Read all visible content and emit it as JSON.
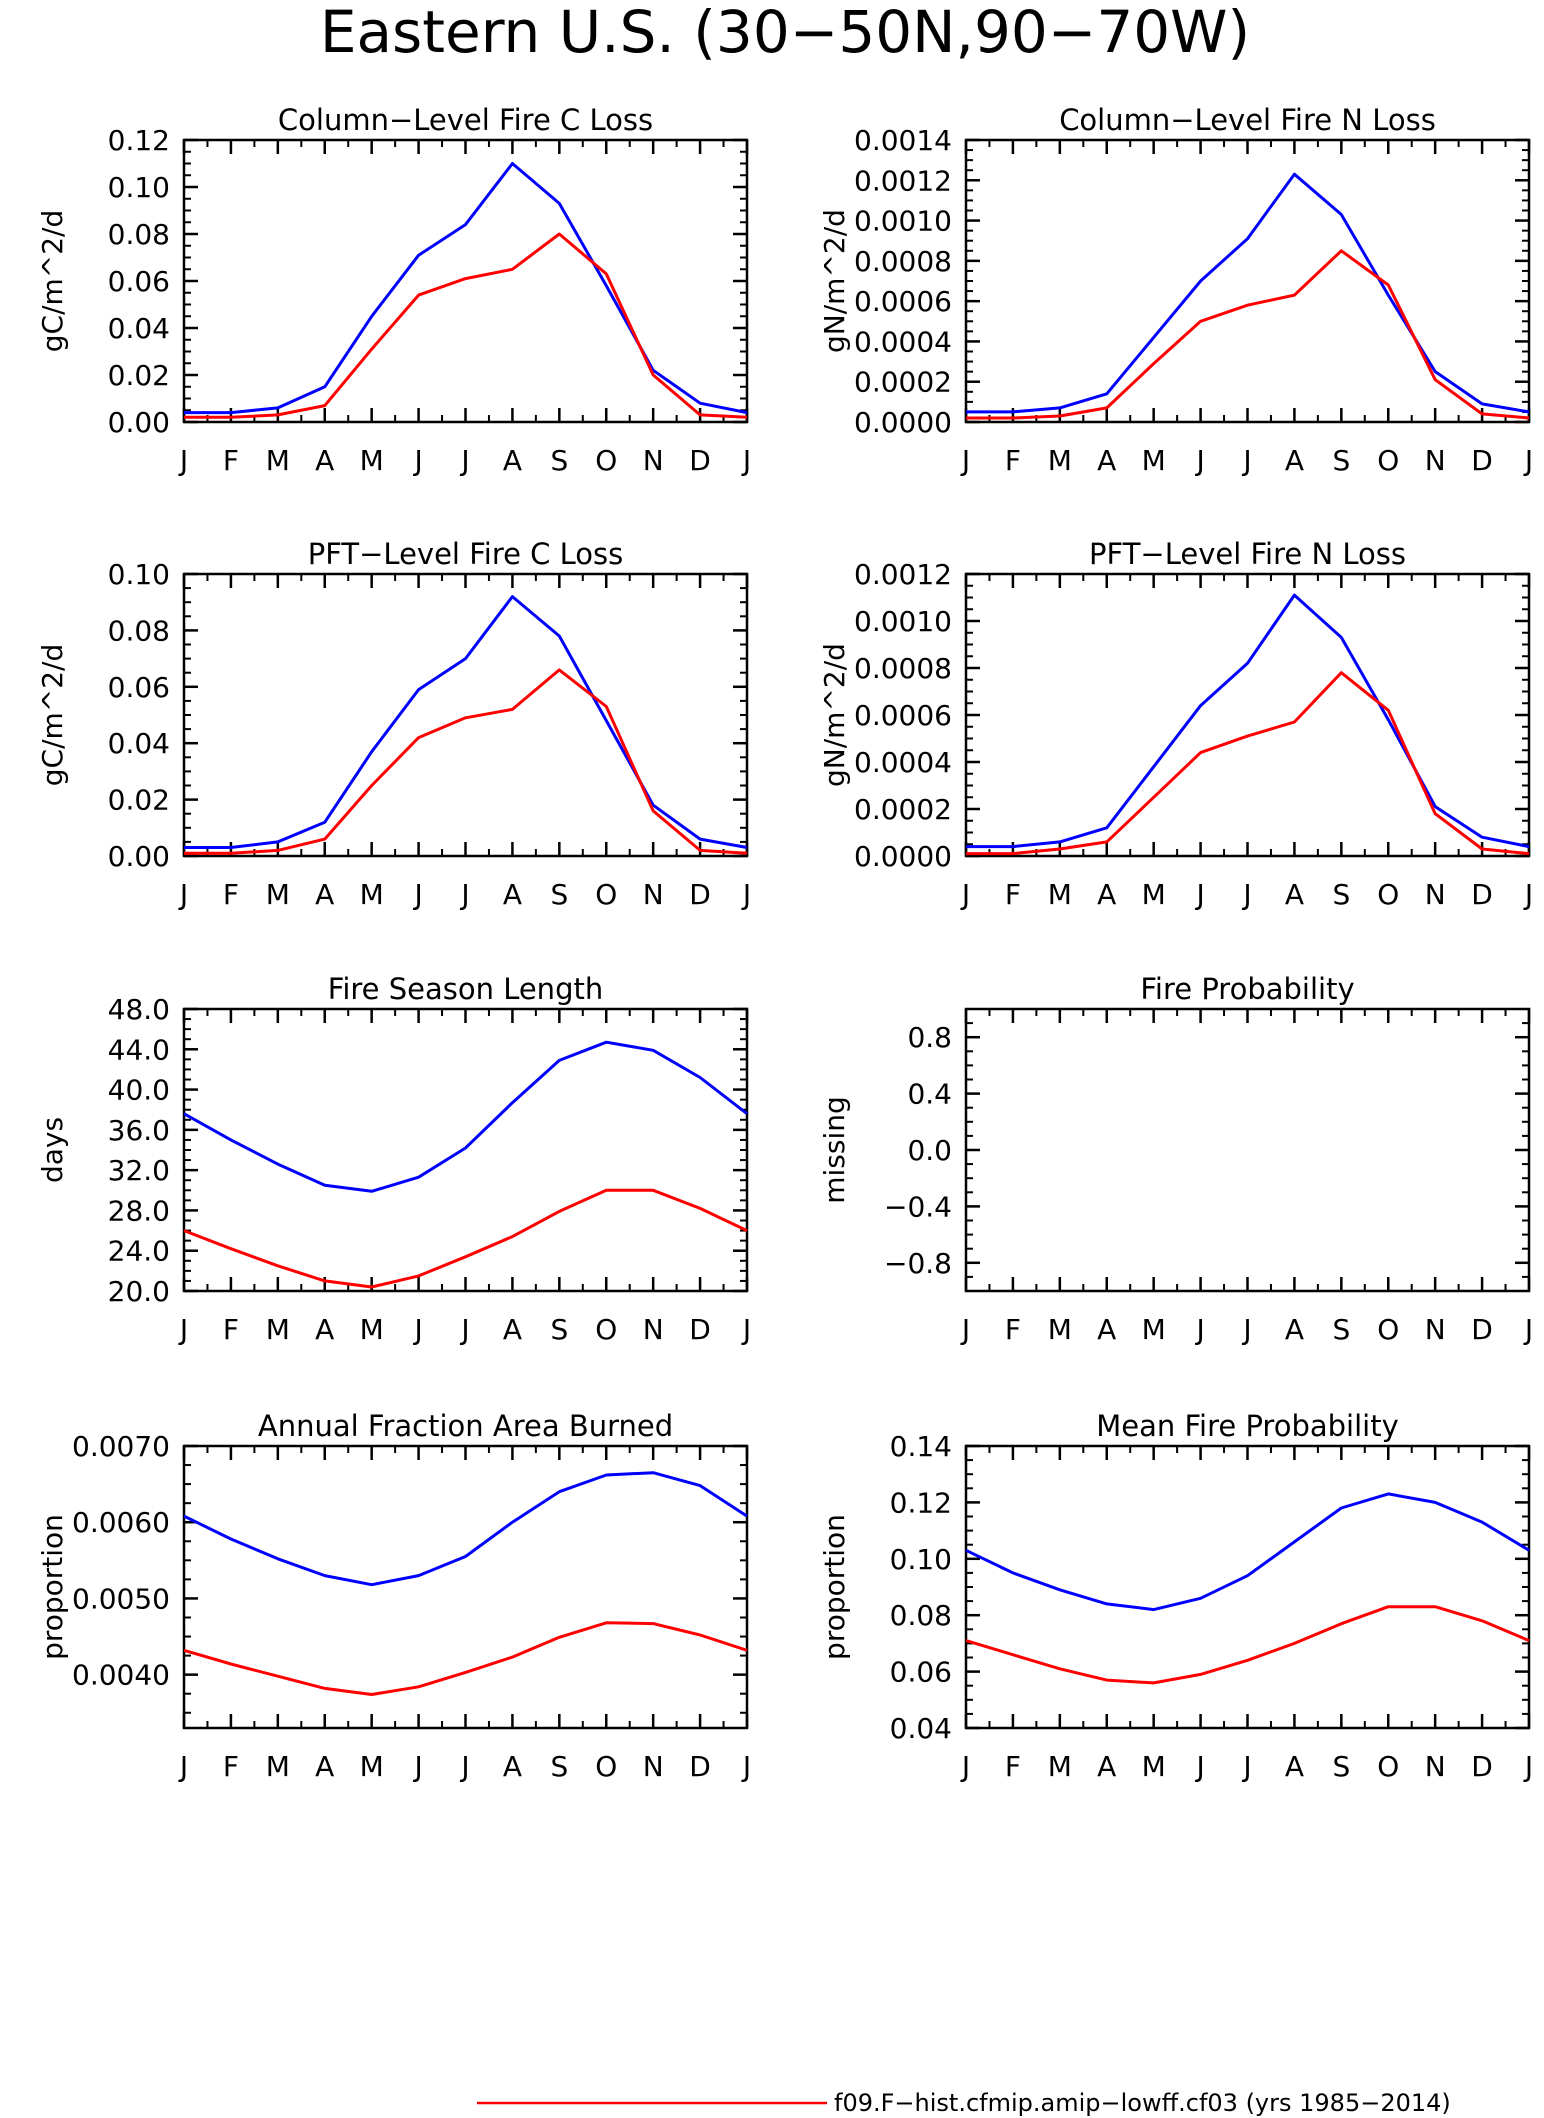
{
  "figure": {
    "title": "Eastern U.S. (30-50N,90-70W)"
  },
  "legend": {
    "entries": [
      {
        "label": "f09.F-hist.cfmip.amip-lowff.cf03 (yrs 1985-2014)",
        "color": "#ff0000"
      }
    ]
  },
  "chart_data": [
    {
      "type": "line",
      "title": "Column-Level Fire C Loss",
      "ylabel": "gC/m^2/d",
      "xlabel": "",
      "x": [
        "J",
        "F",
        "M",
        "A",
        "M",
        "J",
        "J",
        "A",
        "S",
        "O",
        "N",
        "D",
        "J"
      ],
      "ylim": [
        0,
        0.12
      ],
      "yticks": [
        "0.00",
        "0.02",
        "0.04",
        "0.06",
        "0.08",
        "0.10",
        "0.12"
      ],
      "series": [
        {
          "color": "#0000ff",
          "values": [
            0.004,
            0.004,
            0.006,
            0.015,
            0.045,
            0.071,
            0.084,
            0.11,
            0.093,
            0.058,
            0.022,
            0.008,
            0.004
          ]
        },
        {
          "color": "#ff0000",
          "values": [
            0.002,
            0.002,
            0.003,
            0.007,
            0.031,
            0.054,
            0.061,
            0.065,
            0.08,
            0.063,
            0.02,
            0.003,
            0.002
          ]
        }
      ]
    },
    {
      "type": "line",
      "title": "Column-Level Fire N Loss",
      "ylabel": "gN/m^2/d",
      "xlabel": "",
      "x": [
        "J",
        "F",
        "M",
        "A",
        "M",
        "J",
        "J",
        "A",
        "S",
        "O",
        "N",
        "D",
        "J"
      ],
      "ylim": [
        0,
        0.0014
      ],
      "yticks": [
        "0.0000",
        "0.0002",
        "0.0004",
        "0.0006",
        "0.0008",
        "0.0010",
        "0.0012",
        "0.0014"
      ],
      "series": [
        {
          "color": "#0000ff",
          "values": [
            5e-05,
            5e-05,
            7e-05,
            0.00014,
            0.00042,
            0.0007,
            0.00091,
            0.00123,
            0.00103,
            0.00063,
            0.00025,
            9e-05,
            5e-05
          ]
        },
        {
          "color": "#ff0000",
          "values": [
            2e-05,
            2e-05,
            3e-05,
            7e-05,
            0.00029,
            0.0005,
            0.00058,
            0.00063,
            0.00085,
            0.00068,
            0.00021,
            4e-05,
            2e-05
          ]
        }
      ]
    },
    {
      "type": "line",
      "title": "PFT-Level Fire C Loss",
      "ylabel": "gC/m^2/d",
      "xlabel": "",
      "x": [
        "J",
        "F",
        "M",
        "A",
        "M",
        "J",
        "J",
        "A",
        "S",
        "O",
        "N",
        "D",
        "J"
      ],
      "ylim": [
        0,
        0.1
      ],
      "yticks": [
        "0.00",
        "0.02",
        "0.04",
        "0.06",
        "0.08",
        "0.10"
      ],
      "series": [
        {
          "color": "#0000ff",
          "values": [
            0.003,
            0.003,
            0.005,
            0.012,
            0.037,
            0.059,
            0.07,
            0.092,
            0.078,
            0.048,
            0.018,
            0.006,
            0.003
          ]
        },
        {
          "color": "#ff0000",
          "values": [
            0.001,
            0.001,
            0.002,
            0.006,
            0.025,
            0.042,
            0.049,
            0.052,
            0.066,
            0.053,
            0.016,
            0.002,
            0.001
          ]
        }
      ]
    },
    {
      "type": "line",
      "title": "PFT-Level Fire N Loss",
      "ylabel": "gN/m^2/d",
      "xlabel": "",
      "x": [
        "J",
        "F",
        "M",
        "A",
        "M",
        "J",
        "J",
        "A",
        "S",
        "O",
        "N",
        "D",
        "J"
      ],
      "ylim": [
        0,
        0.0012
      ],
      "yticks": [
        "0.0000",
        "0.0002",
        "0.0004",
        "0.0006",
        "0.0008",
        "0.0010",
        "0.0012"
      ],
      "series": [
        {
          "color": "#0000ff",
          "values": [
            4e-05,
            4e-05,
            6e-05,
            0.00012,
            0.00038,
            0.00064,
            0.00082,
            0.00111,
            0.00093,
            0.00058,
            0.00021,
            8e-05,
            4e-05
          ]
        },
        {
          "color": "#ff0000",
          "values": [
            1e-05,
            1e-05,
            3e-05,
            6e-05,
            0.00025,
            0.00044,
            0.00051,
            0.00057,
            0.00078,
            0.00062,
            0.00018,
            3e-05,
            1e-05
          ]
        }
      ]
    },
    {
      "type": "line",
      "title": "Fire Season Length",
      "ylabel": "days",
      "xlabel": "",
      "x": [
        "J",
        "F",
        "M",
        "A",
        "M",
        "J",
        "J",
        "A",
        "S",
        "O",
        "N",
        "D",
        "J"
      ],
      "ylim": [
        20,
        48
      ],
      "yticks": [
        "20.0",
        "24.0",
        "28.0",
        "32.0",
        "36.0",
        "40.0",
        "44.0",
        "48.0"
      ],
      "series": [
        {
          "color": "#0000ff",
          "values": [
            37.6,
            35.0,
            32.6,
            30.5,
            29.9,
            31.3,
            34.2,
            38.7,
            42.9,
            44.7,
            43.9,
            41.2,
            37.6
          ]
        },
        {
          "color": "#ff0000",
          "values": [
            26.0,
            24.2,
            22.5,
            21.0,
            20.4,
            21.5,
            23.4,
            25.4,
            27.9,
            30.0,
            30.0,
            28.2,
            26.0
          ]
        }
      ]
    },
    {
      "type": "line",
      "title": "Fire Probability",
      "ylabel": "missing",
      "xlabel": "",
      "x": [
        "J",
        "F",
        "M",
        "A",
        "M",
        "J",
        "J",
        "A",
        "S",
        "O",
        "N",
        "D",
        "J"
      ],
      "ylim": [
        -1,
        1
      ],
      "yticks": [
        "-0.8",
        "-0.4",
        "0.0",
        "0.4",
        "0.8"
      ],
      "yticks_values": [
        -0.8,
        -0.4,
        0,
        0.4,
        0.8
      ],
      "series": []
    },
    {
      "type": "line",
      "title": "Annual Fraction Area Burned",
      "ylabel": "proportion",
      "xlabel": "",
      "x": [
        "J",
        "F",
        "M",
        "A",
        "M",
        "J",
        "J",
        "A",
        "S",
        "O",
        "N",
        "D",
        "J"
      ],
      "ylim": [
        0.0033,
        0.007
      ],
      "yticks": [
        "0.0040",
        "0.0050",
        "0.0060",
        "0.0070"
      ],
      "yticks_values": [
        0.004,
        0.005,
        0.006,
        0.007
      ],
      "series": [
        {
          "color": "#0000ff",
          "values": [
            0.00608,
            0.00578,
            0.00552,
            0.0053,
            0.00518,
            0.0053,
            0.00555,
            0.006,
            0.0064,
            0.00662,
            0.00665,
            0.00648,
            0.00608
          ]
        },
        {
          "color": "#ff0000",
          "values": [
            0.00432,
            0.00414,
            0.00398,
            0.00382,
            0.00374,
            0.00384,
            0.00403,
            0.00423,
            0.00449,
            0.00468,
            0.00467,
            0.00452,
            0.00432
          ]
        }
      ]
    },
    {
      "type": "line",
      "title": "Mean Fire Probability",
      "ylabel": "proportion",
      "xlabel": "",
      "x": [
        "J",
        "F",
        "M",
        "A",
        "M",
        "J",
        "J",
        "A",
        "S",
        "O",
        "N",
        "D",
        "J"
      ],
      "ylim": [
        0.04,
        0.14
      ],
      "yticks": [
        "0.04",
        "0.06",
        "0.08",
        "0.10",
        "0.12",
        "0.14"
      ],
      "series": [
        {
          "color": "#0000ff",
          "values": [
            0.103,
            0.095,
            0.089,
            0.084,
            0.082,
            0.086,
            0.094,
            0.106,
            0.118,
            0.123,
            0.12,
            0.113,
            0.103
          ]
        },
        {
          "color": "#ff0000",
          "values": [
            0.071,
            0.066,
            0.061,
            0.057,
            0.056,
            0.059,
            0.064,
            0.07,
            0.077,
            0.083,
            0.083,
            0.078,
            0.071
          ]
        }
      ]
    }
  ]
}
